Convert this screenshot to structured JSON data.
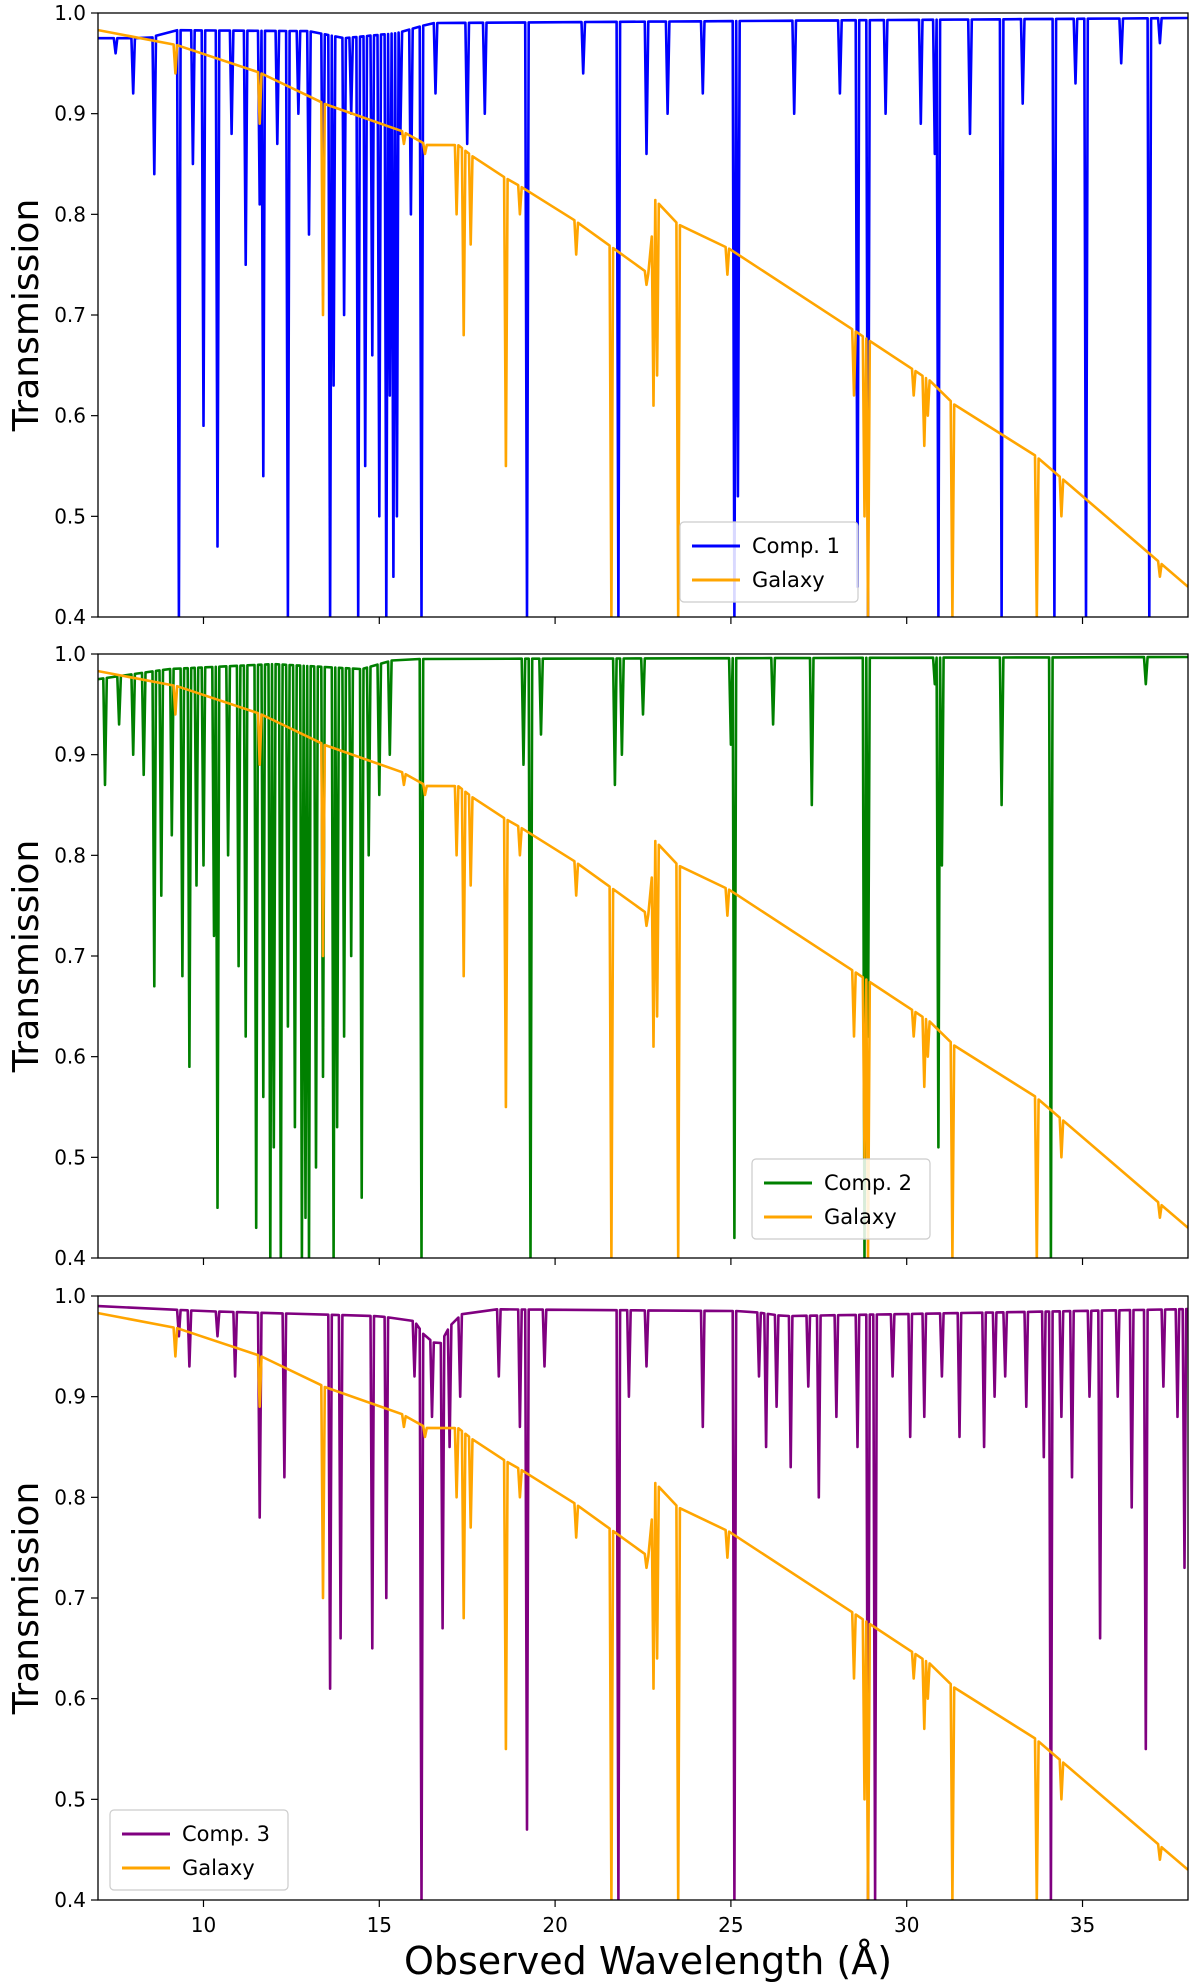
{
  "figure": {
    "xlabel": "Observed Wavelength (Å)",
    "ylabel": "Transmission"
  },
  "chart_data": [
    {
      "type": "line",
      "xlim": [
        7,
        38
      ],
      "ylim": [
        0.4,
        1.0
      ],
      "x_ticks": [
        10,
        15,
        20,
        25,
        30,
        35
      ],
      "y_ticks": [
        0.4,
        0.5,
        0.6,
        0.7,
        0.8,
        0.9,
        1.0
      ],
      "ylabel": "Transmission",
      "legend_position": "lower-center",
      "series": [
        {
          "name": "Comp. 1",
          "color": "#0000ff",
          "continuum": [
            [
              7,
              0.975
            ],
            [
              8.5,
              0.975
            ],
            [
              9,
              0.983
            ],
            [
              13,
              0.982
            ],
            [
              14,
              0.975
            ],
            [
              15.5,
              0.98
            ],
            [
              16.5,
              0.99
            ],
            [
              38,
              0.995
            ]
          ],
          "absorption_lines": [
            [
              7.5,
              0.96
            ],
            [
              8,
              0.92
            ],
            [
              8.6,
              0.84
            ],
            [
              9.3,
              0.4
            ],
            [
              9.7,
              0.85
            ],
            [
              10,
              0.59
            ],
            [
              10.4,
              0.47
            ],
            [
              10.8,
              0.88
            ],
            [
              11.2,
              0.75
            ],
            [
              11.6,
              0.81
            ],
            [
              11.7,
              0.54
            ],
            [
              12.1,
              0.87
            ],
            [
              12.4,
              0.4
            ],
            [
              12.7,
              0.9
            ],
            [
              13,
              0.78
            ],
            [
              13.4,
              0.72
            ],
            [
              13.6,
              0.4
            ],
            [
              13.7,
              0.63
            ],
            [
              14,
              0.7
            ],
            [
              14.2,
              0.9
            ],
            [
              14.4,
              0.4
            ],
            [
              14.6,
              0.55
            ],
            [
              14.8,
              0.66
            ],
            [
              15,
              0.5
            ],
            [
              15.2,
              0.4
            ],
            [
              15.3,
              0.62
            ],
            [
              15.4,
              0.44
            ],
            [
              15.5,
              0.5
            ],
            [
              15.6,
              0.88
            ],
            [
              15.9,
              0.8
            ],
            [
              16.2,
              0.4
            ],
            [
              16.6,
              0.92
            ],
            [
              17.5,
              0.87
            ],
            [
              18,
              0.9
            ],
            [
              19.2,
              0.4
            ],
            [
              20.8,
              0.94
            ],
            [
              21.8,
              0.4
            ],
            [
              22.6,
              0.86
            ],
            [
              23.2,
              0.9
            ],
            [
              24.2,
              0.92
            ],
            [
              25.1,
              0.4
            ],
            [
              25.2,
              0.52
            ],
            [
              26.8,
              0.9
            ],
            [
              28.1,
              0.92
            ],
            [
              28.6,
              0.43
            ],
            [
              28.9,
              0.4
            ],
            [
              29.4,
              0.9
            ],
            [
              30.4,
              0.89
            ],
            [
              30.8,
              0.86
            ],
            [
              30.9,
              0.4
            ],
            [
              31.8,
              0.88
            ],
            [
              32.7,
              0.4
            ],
            [
              33.3,
              0.91
            ],
            [
              34.2,
              0.4
            ],
            [
              34.8,
              0.93
            ],
            [
              35.1,
              0.4
            ],
            [
              36.1,
              0.95
            ],
            [
              36.9,
              0.4
            ],
            [
              37.2,
              0.97
            ]
          ]
        },
        {
          "name": "Comp. 2",
          "color": "#008000",
          "continuum": [
            [
              7,
              0.975
            ],
            [
              9,
              0.985
            ],
            [
              12,
              0.99
            ],
            [
              14.5,
              0.985
            ],
            [
              15.5,
              0.995
            ],
            [
              38,
              0.997
            ]
          ],
          "absorption_lines": [
            [
              7.2,
              0.87
            ],
            [
              7.6,
              0.93
            ],
            [
              8,
              0.9
            ],
            [
              8.3,
              0.88
            ],
            [
              8.6,
              0.67
            ],
            [
              8.8,
              0.76
            ],
            [
              9.1,
              0.82
            ],
            [
              9.4,
              0.68
            ],
            [
              9.6,
              0.59
            ],
            [
              9.8,
              0.77
            ],
            [
              10,
              0.79
            ],
            [
              10.3,
              0.72
            ],
            [
              10.4,
              0.45
            ],
            [
              10.7,
              0.8
            ],
            [
              11,
              0.69
            ],
            [
              11.2,
              0.62
            ],
            [
              11.5,
              0.43
            ],
            [
              11.7,
              0.56
            ],
            [
              11.9,
              0.4
            ],
            [
              12,
              0.51
            ],
            [
              12.2,
              0.4
            ],
            [
              12.4,
              0.63
            ],
            [
              12.6,
              0.53
            ],
            [
              12.8,
              0.4
            ],
            [
              12.9,
              0.44
            ],
            [
              13,
              0.4
            ],
            [
              13.2,
              0.49
            ],
            [
              13.4,
              0.58
            ],
            [
              13.7,
              0.4
            ],
            [
              13.8,
              0.53
            ],
            [
              14,
              0.62
            ],
            [
              14.2,
              0.7
            ],
            [
              14.5,
              0.46
            ],
            [
              14.7,
              0.8
            ],
            [
              15,
              0.86
            ],
            [
              15.3,
              0.9
            ],
            [
              16.2,
              0.4
            ],
            [
              19.1,
              0.89
            ],
            [
              19.3,
              0.4
            ],
            [
              19.6,
              0.92
            ],
            [
              21.7,
              0.87
            ],
            [
              21.9,
              0.9
            ],
            [
              22.5,
              0.94
            ],
            [
              25,
              0.91
            ],
            [
              25.1,
              0.42
            ],
            [
              26.2,
              0.93
            ],
            [
              27.3,
              0.85
            ],
            [
              28.8,
              0.4
            ],
            [
              28.9,
              0.62
            ],
            [
              30.8,
              0.97
            ],
            [
              30.9,
              0.51
            ],
            [
              31,
              0.79
            ],
            [
              32.7,
              0.85
            ],
            [
              34.1,
              0.4
            ],
            [
              36.8,
              0.97
            ]
          ]
        },
        {
          "name": "Comp. 3",
          "color": "#800080",
          "continuum": [
            [
              7,
              0.99
            ],
            [
              10,
              0.985
            ],
            [
              15,
              0.98
            ],
            [
              16,
              0.975
            ],
            [
              16.3,
              0.96
            ],
            [
              16.7,
              0.95
            ],
            [
              17,
              0.97
            ],
            [
              17.5,
              0.987
            ],
            [
              25.5,
              0.985
            ],
            [
              26.5,
              0.98
            ],
            [
              38,
              0.987
            ]
          ],
          "absorption_lines": [
            [
              9.3,
              0.96
            ],
            [
              9.6,
              0.93
            ],
            [
              10.4,
              0.96
            ],
            [
              10.9,
              0.92
            ],
            [
              11.6,
              0.78
            ],
            [
              12.3,
              0.82
            ],
            [
              13.6,
              0.61
            ],
            [
              13.9,
              0.66
            ],
            [
              14.8,
              0.65
            ],
            [
              15.2,
              0.7
            ],
            [
              16,
              0.92
            ],
            [
              16.2,
              0.4
            ],
            [
              16.5,
              0.88
            ],
            [
              16.8,
              0.67
            ],
            [
              17,
              0.85
            ],
            [
              17.3,
              0.9
            ],
            [
              18.4,
              0.92
            ],
            [
              19,
              0.87
            ],
            [
              19.2,
              0.47
            ],
            [
              19.7,
              0.93
            ],
            [
              21.8,
              0.4
            ],
            [
              22.1,
              0.9
            ],
            [
              22.6,
              0.93
            ],
            [
              24.2,
              0.87
            ],
            [
              25.1,
              0.4
            ],
            [
              25.8,
              0.92
            ],
            [
              26,
              0.85
            ],
            [
              26.3,
              0.89
            ],
            [
              26.7,
              0.83
            ],
            [
              27.2,
              0.91
            ],
            [
              27.5,
              0.8
            ],
            [
              28,
              0.88
            ],
            [
              28.6,
              0.85
            ],
            [
              28.9,
              0.4
            ],
            [
              29.1,
              0.4
            ],
            [
              29.6,
              0.92
            ],
            [
              30.1,
              0.86
            ],
            [
              30.5,
              0.88
            ],
            [
              31,
              0.92
            ],
            [
              31.5,
              0.86
            ],
            [
              32.2,
              0.85
            ],
            [
              32.5,
              0.9
            ],
            [
              32.8,
              0.92
            ],
            [
              33.4,
              0.89
            ],
            [
              33.9,
              0.84
            ],
            [
              34.1,
              0.4
            ],
            [
              34.4,
              0.88
            ],
            [
              34.7,
              0.82
            ],
            [
              35.2,
              0.9
            ],
            [
              35.5,
              0.66
            ],
            [
              36,
              0.9
            ],
            [
              36.4,
              0.79
            ],
            [
              36.8,
              0.55
            ],
            [
              37.3,
              0.91
            ],
            [
              37.7,
              0.88
            ],
            [
              37.9,
              0.73
            ]
          ]
        },
        {
          "name": "Galaxy",
          "color": "#ffa500",
          "continuum": [
            [
              7,
              0.983
            ],
            [
              10,
              0.963
            ],
            [
              12,
              0.935
            ],
            [
              14,
              0.9
            ],
            [
              14.4,
              0.89
            ],
            [
              14.5,
              0.905
            ],
            [
              16.5,
              0.866
            ],
            [
              16.8,
              0.86
            ],
            [
              17.2,
              0.87
            ],
            [
              18,
              0.848
            ],
            [
              20,
              0.808
            ],
            [
              22.7,
              0.74
            ],
            [
              22.8,
              0.816
            ],
            [
              23.5,
              0.79
            ],
            [
              25,
              0.765
            ],
            [
              27,
              0.72
            ],
            [
              29,
              0.673
            ],
            [
              31,
              0.627
            ],
            [
              31.3,
              0.612
            ],
            [
              33,
              0.58
            ],
            [
              35,
              0.52
            ],
            [
              38,
              0.43
            ]
          ],
          "absorption_lines": [
            [
              9.2,
              0.94
            ],
            [
              11.6,
              0.89
            ],
            [
              13.4,
              0.7
            ],
            [
              15.7,
              0.87
            ],
            [
              16.3,
              0.86
            ],
            [
              17.2,
              0.8
            ],
            [
              17.4,
              0.68
            ],
            [
              17.6,
              0.77
            ],
            [
              18.6,
              0.55
            ],
            [
              19,
              0.8
            ],
            [
              20.6,
              0.76
            ],
            [
              21.6,
              0.4
            ],
            [
              22.6,
              0.73
            ],
            [
              22.8,
              0.61
            ],
            [
              22.9,
              0.64
            ],
            [
              23.5,
              0.4
            ],
            [
              24.9,
              0.74
            ],
            [
              28.5,
              0.62
            ],
            [
              28.8,
              0.5
            ],
            [
              28.9,
              0.4
            ],
            [
              30.2,
              0.62
            ],
            [
              30.5,
              0.57
            ],
            [
              30.6,
              0.6
            ],
            [
              31.3,
              0.4
            ],
            [
              33.7,
              0.4
            ],
            [
              34.4,
              0.5
            ],
            [
              37.2,
              0.44
            ]
          ]
        }
      ],
      "panels": [
        {
          "series": [
            "Comp. 1",
            "Galaxy"
          ],
          "legend": "lower-center",
          "show_xticklabels": false
        },
        {
          "series": [
            "Comp. 2",
            "Galaxy"
          ],
          "legend": "lower-right",
          "show_xticklabels": false
        },
        {
          "series": [
            "Comp. 3",
            "Galaxy"
          ],
          "legend": "lower-left",
          "show_xticklabels": true
        }
      ]
    }
  ]
}
